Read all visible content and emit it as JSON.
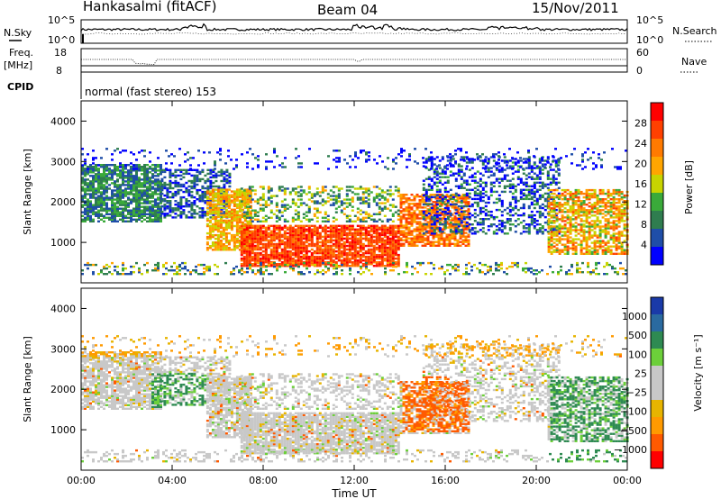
{
  "header": {
    "station": "Hankasalmi (fitACF)",
    "beam": "Beam 04",
    "date": "15/Nov/2011"
  },
  "summary": {
    "nsky_label": "N.Sky",
    "nsearch_label": "N.Search",
    "freq_label_line1": "Freq.",
    "freq_label_line2": "[MHz]",
    "nave_label": "Nave",
    "cpid_label": "CPID",
    "cpid_text": "normal (fast stereo) 153",
    "noise_ticks": {
      "top": "10^5",
      "bottom": "10^0"
    },
    "freq_ticks": [
      "18",
      "8"
    ],
    "nave_ticks": [
      "60",
      "0"
    ]
  },
  "colors": {
    "power_scale": [
      "#0000ff",
      "#1f4ea8",
      "#2f7d4f",
      "#3aaa3a",
      "#c8d400",
      "#ffa500",
      "#ff7a00",
      "#ff4000",
      "#ff0000"
    ],
    "velocity_scale": [
      "#ff0000",
      "#ff5a00",
      "#ff9a00",
      "#e7b400",
      "#c8c8c8",
      "#c8c8c8",
      "#6ccf3a",
      "#2e8a52",
      "#2a6aa0",
      "#1a3aa8"
    ]
  },
  "chart_data": [
    {
      "type": "heatmap",
      "name": "power",
      "xlabel": "Time UT",
      "ylabel": "Slant Range [km]",
      "y_ticks": [
        "1000",
        "2000",
        "3000",
        "4000"
      ],
      "x_ticks": [
        "00:00",
        "04:00",
        "08:00",
        "12:00",
        "16:00",
        "20:00",
        "00:00"
      ],
      "colorbar": {
        "label": "Power [dB]",
        "ticks": [
          "4",
          "8",
          "12",
          "16",
          "20",
          "24",
          "28"
        ]
      }
    },
    {
      "type": "heatmap",
      "name": "velocity",
      "xlabel": "Time UT",
      "ylabel": "Slant Range [km]",
      "y_ticks": [
        "1000",
        "2000",
        "3000",
        "4000"
      ],
      "x_ticks": [
        "00:00",
        "04:00",
        "08:00",
        "12:00",
        "16:00",
        "20:00",
        "00:00"
      ],
      "colorbar": {
        "label": "Velocity [m s⁻¹]",
        "ticks": [
          "1000",
          "500",
          "100",
          "25",
          "−25",
          "−100",
          "−500",
          "−1000"
        ]
      }
    }
  ]
}
